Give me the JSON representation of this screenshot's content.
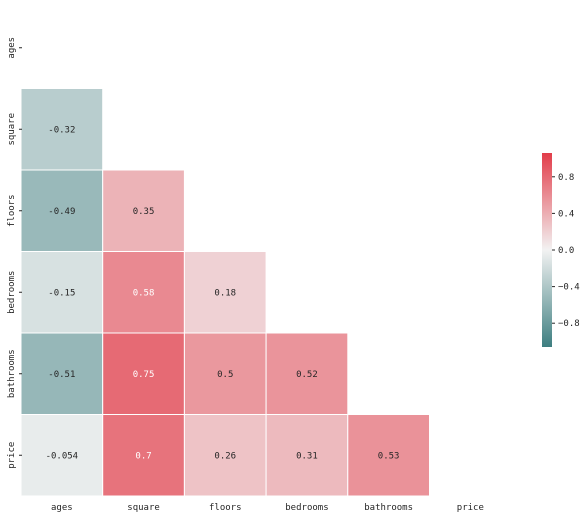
{
  "chart_data": {
    "type": "heatmap",
    "title": "",
    "xlabel": "",
    "ylabel": "",
    "labels": [
      "ages",
      "square",
      "floors",
      "bedrooms",
      "bathrooms",
      "price"
    ],
    "mask": "upper-triangle-including-diagonal",
    "matrix": [
      [
        null,
        null,
        null,
        null,
        null,
        null
      ],
      [
        -0.32,
        null,
        null,
        null,
        null,
        null
      ],
      [
        -0.49,
        0.35,
        null,
        null,
        null,
        null
      ],
      [
        -0.15,
        0.58,
        0.18,
        null,
        null,
        null
      ],
      [
        -0.51,
        0.75,
        0.5,
        0.52,
        null,
        null
      ],
      [
        -0.054,
        0.7,
        0.26,
        0.31,
        0.53,
        null
      ]
    ],
    "value_labels": [
      [
        null,
        null,
        null,
        null,
        null,
        null
      ],
      [
        "-0.32",
        null,
        null,
        null,
        null,
        null
      ],
      [
        "-0.49",
        "0.35",
        null,
        null,
        null,
        null
      ],
      [
        "-0.15",
        "0.58",
        "0.18",
        null,
        null,
        null
      ],
      [
        "-0.51",
        "0.75",
        "0.5",
        "0.52",
        null,
        null
      ],
      [
        "-0.054",
        "0.7",
        "0.26",
        "0.31",
        "0.53",
        null
      ]
    ],
    "colormap": {
      "low": "#3d7e80",
      "mid": "#f2f2f2",
      "high": "#e23d4a"
    },
    "vmin": -1,
    "vmax": 1,
    "colorbar": {
      "ticks": [
        0.8,
        0.4,
        0.0,
        -0.4,
        -0.8
      ],
      "tick_labels": [
        "0.8",
        "0.4",
        "0.0",
        "−0.4",
        "−0.8"
      ],
      "placement": "right"
    }
  }
}
